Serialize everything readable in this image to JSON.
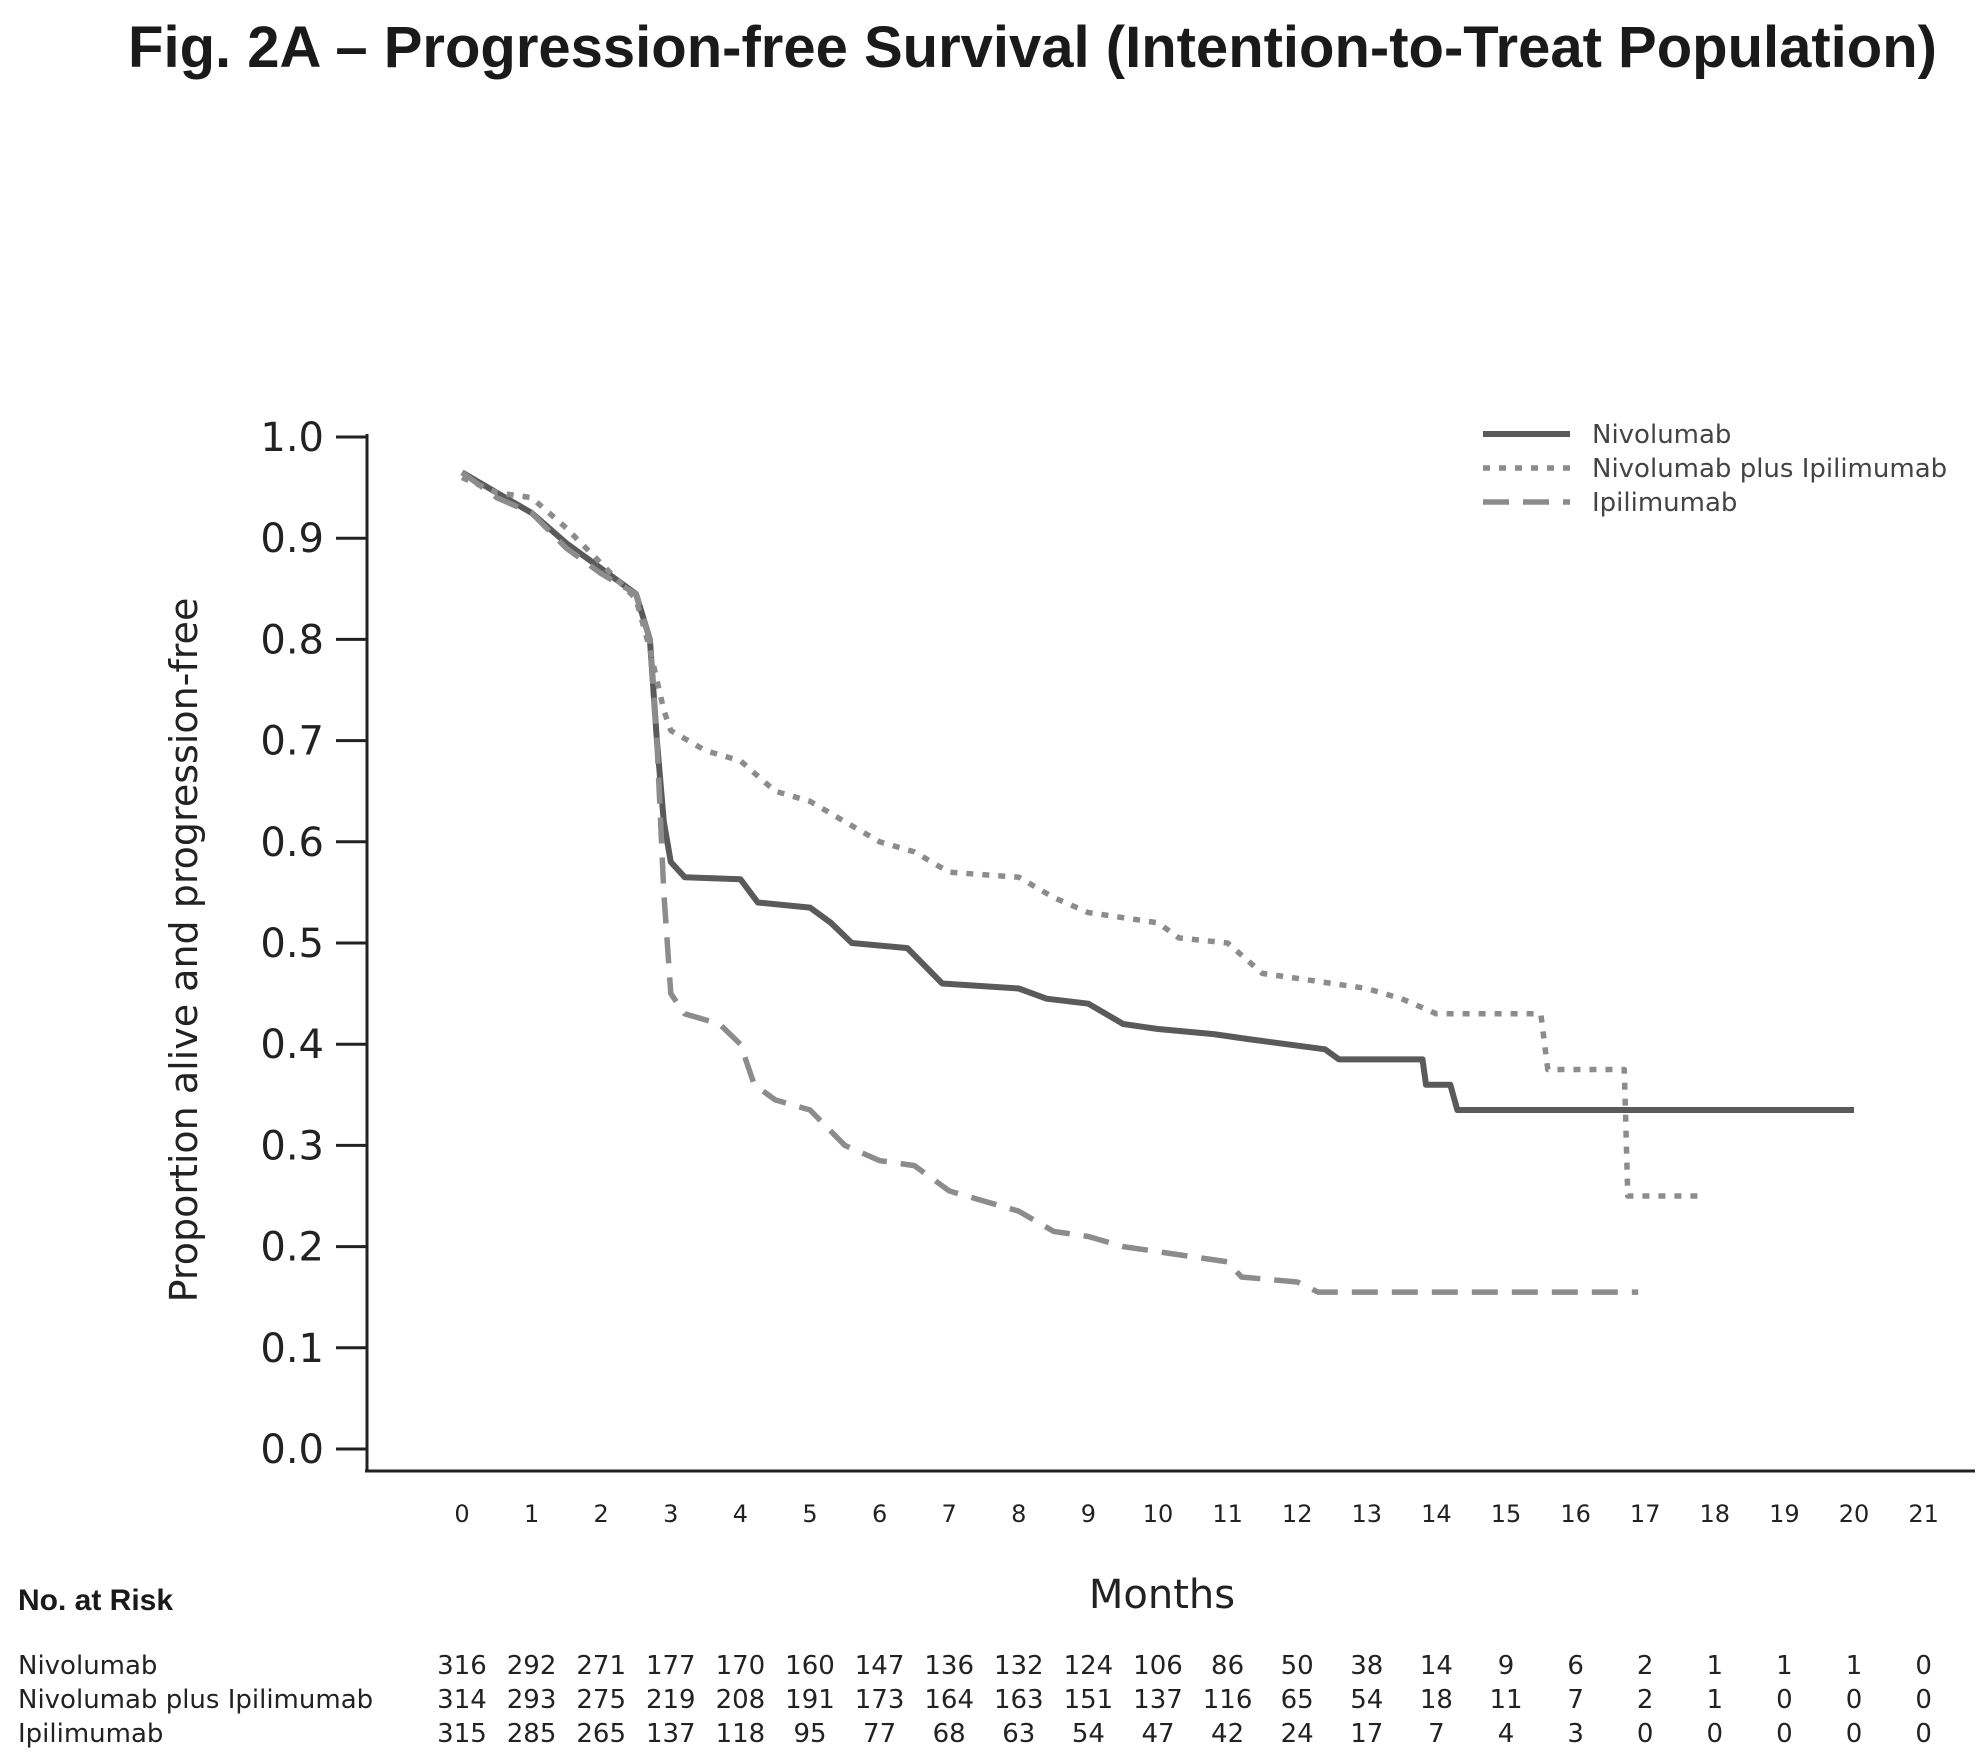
{
  "figure_title": "Fig. 2A – Progression-free Survival (Intention-to-Treat Population)",
  "colors": {
    "axis": "#222222",
    "nivolumab": "#5a5a5a",
    "combo": "#8c8c8c",
    "ipilimumab": "#8c8c8c"
  },
  "chart_data": {
    "type": "line",
    "title": "Fig. 2A – Progression-free Survival (Intention-to-Treat Population)",
    "xlabel": "Months",
    "ylabel": "Proportion alive and progression-free",
    "xlim": [
      0,
      21
    ],
    "ylim": [
      0,
      1
    ],
    "xticks": [
      0,
      1,
      2,
      3,
      4,
      5,
      6,
      7,
      8,
      9,
      10,
      11,
      12,
      13,
      14,
      15,
      16,
      17,
      18,
      19,
      20,
      21
    ],
    "yticks": [
      "0.0",
      "0.1",
      "0.2",
      "0.3",
      "0.4",
      "0.5",
      "0.6",
      "0.7",
      "0.8",
      "0.9",
      "1.0"
    ],
    "legend_position": "top-right",
    "series": [
      {
        "name": "Nivolumab",
        "style": "solid",
        "points": [
          [
            0,
            0.965
          ],
          [
            0.5,
            0.945
          ],
          [
            1,
            0.925
          ],
          [
            1.5,
            0.895
          ],
          [
            2,
            0.87
          ],
          [
            2.5,
            0.845
          ],
          [
            2.7,
            0.8
          ],
          [
            2.8,
            0.7
          ],
          [
            2.9,
            0.62
          ],
          [
            3.0,
            0.58
          ],
          [
            3.2,
            0.565
          ],
          [
            4,
            0.563
          ],
          [
            4.25,
            0.54
          ],
          [
            5,
            0.535
          ],
          [
            5.3,
            0.52
          ],
          [
            5.6,
            0.5
          ],
          [
            6.4,
            0.495
          ],
          [
            6.9,
            0.46
          ],
          [
            8,
            0.455
          ],
          [
            8.4,
            0.445
          ],
          [
            9,
            0.44
          ],
          [
            9.5,
            0.42
          ],
          [
            10,
            0.415
          ],
          [
            10.8,
            0.41
          ],
          [
            11.3,
            0.405
          ],
          [
            12.4,
            0.395
          ],
          [
            12.6,
            0.385
          ],
          [
            13.8,
            0.385
          ],
          [
            13.85,
            0.36
          ],
          [
            14.2,
            0.36
          ],
          [
            14.3,
            0.335
          ],
          [
            20.0,
            0.335
          ]
        ]
      },
      {
        "name": "Nivolumab plus Ipilimumab",
        "style": "dotted",
        "points": [
          [
            0,
            0.96
          ],
          [
            0.5,
            0.945
          ],
          [
            1,
            0.94
          ],
          [
            1.5,
            0.91
          ],
          [
            2,
            0.875
          ],
          [
            2.5,
            0.84
          ],
          [
            2.7,
            0.79
          ],
          [
            2.9,
            0.73
          ],
          [
            3.0,
            0.71
          ],
          [
            3.5,
            0.69
          ],
          [
            4,
            0.68
          ],
          [
            4.5,
            0.65
          ],
          [
            5,
            0.64
          ],
          [
            5.5,
            0.62
          ],
          [
            6,
            0.6
          ],
          [
            6.5,
            0.59
          ],
          [
            7,
            0.57
          ],
          [
            8,
            0.565
          ],
          [
            8.5,
            0.545
          ],
          [
            9,
            0.53
          ],
          [
            10,
            0.52
          ],
          [
            10.3,
            0.505
          ],
          [
            11,
            0.5
          ],
          [
            11.5,
            0.47
          ],
          [
            12,
            0.465
          ],
          [
            13,
            0.455
          ],
          [
            13.5,
            0.445
          ],
          [
            14,
            0.43
          ],
          [
            15.5,
            0.43
          ],
          [
            15.6,
            0.375
          ],
          [
            16.7,
            0.375
          ],
          [
            16.75,
            0.25
          ],
          [
            17.8,
            0.25
          ]
        ]
      },
      {
        "name": "Ipilimumab",
        "style": "dashed",
        "points": [
          [
            0,
            0.965
          ],
          [
            0.5,
            0.94
          ],
          [
            1,
            0.925
          ],
          [
            1.5,
            0.89
          ],
          [
            2,
            0.865
          ],
          [
            2.5,
            0.845
          ],
          [
            2.7,
            0.8
          ],
          [
            2.8,
            0.7
          ],
          [
            2.9,
            0.55
          ],
          [
            3.0,
            0.45
          ],
          [
            3.2,
            0.43
          ],
          [
            3.7,
            0.42
          ],
          [
            4,
            0.4
          ],
          [
            4.2,
            0.36
          ],
          [
            4.5,
            0.345
          ],
          [
            5,
            0.335
          ],
          [
            5.5,
            0.3
          ],
          [
            6,
            0.285
          ],
          [
            6.5,
            0.28
          ],
          [
            7,
            0.255
          ],
          [
            7.5,
            0.245
          ],
          [
            8,
            0.235
          ],
          [
            8.5,
            0.215
          ],
          [
            9,
            0.21
          ],
          [
            9.5,
            0.2
          ],
          [
            10,
            0.195
          ],
          [
            11,
            0.185
          ],
          [
            11.2,
            0.17
          ],
          [
            12,
            0.165
          ],
          [
            12.3,
            0.155
          ],
          [
            14,
            0.155
          ],
          [
            16.9,
            0.155
          ]
        ]
      }
    ]
  },
  "risk_table": {
    "title": "No. at Risk",
    "rows": [
      {
        "name": "Nivolumab",
        "values": [
          "316",
          "292",
          "271",
          "177",
          "170",
          "160",
          "147",
          "136",
          "132",
          "124",
          "106",
          "86",
          "50",
          "38",
          "14",
          "9",
          "6",
          "2",
          "1",
          "1",
          "1",
          "0"
        ]
      },
      {
        "name": "Nivolumab plus Ipilimumab",
        "values": [
          "314",
          "293",
          "275",
          "219",
          "208",
          "191",
          "173",
          "164",
          "163",
          "151",
          "137",
          "116",
          "65",
          "54",
          "18",
          "11",
          "7",
          "2",
          "1",
          "0",
          "0",
          "0"
        ]
      },
      {
        "name": "Ipilimumab",
        "values": [
          "315",
          "285",
          "265",
          "137",
          "118",
          "95",
          "77",
          "68",
          "63",
          "54",
          "47",
          "42",
          "24",
          "17",
          "7",
          "4",
          "3",
          "0",
          "0",
          "0",
          "0",
          "0"
        ]
      }
    ]
  }
}
